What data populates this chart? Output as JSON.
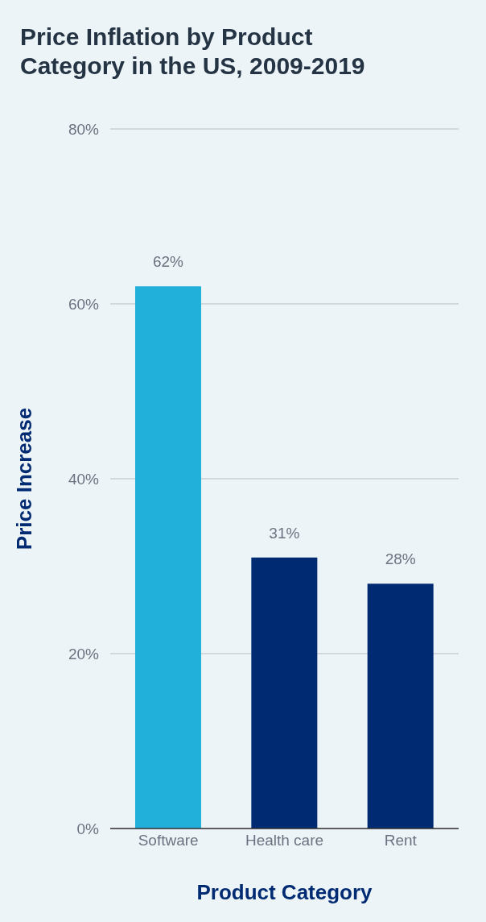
{
  "chart_data": {
    "type": "bar",
    "title": "Price Inflation by Product Category in the US, 2009-2019",
    "xlabel": "Product Category",
    "ylabel": "Price Increase",
    "categories": [
      "Software",
      "Health care",
      "Rent"
    ],
    "values": [
      62,
      31,
      28
    ],
    "colors": [
      "#20b0da",
      "#002b73",
      "#002b73"
    ],
    "value_labels": [
      "62%",
      "31%",
      "28%"
    ],
    "ylim": [
      0,
      80
    ],
    "yticks": [
      {
        "value": 0,
        "label": "0%"
      },
      {
        "value": 20,
        "label": "20%"
      },
      {
        "value": 40,
        "label": "40%"
      },
      {
        "value": 60,
        "label": "60%"
      },
      {
        "value": 80,
        "label": "80%"
      }
    ],
    "grid": "y",
    "legend": false
  }
}
